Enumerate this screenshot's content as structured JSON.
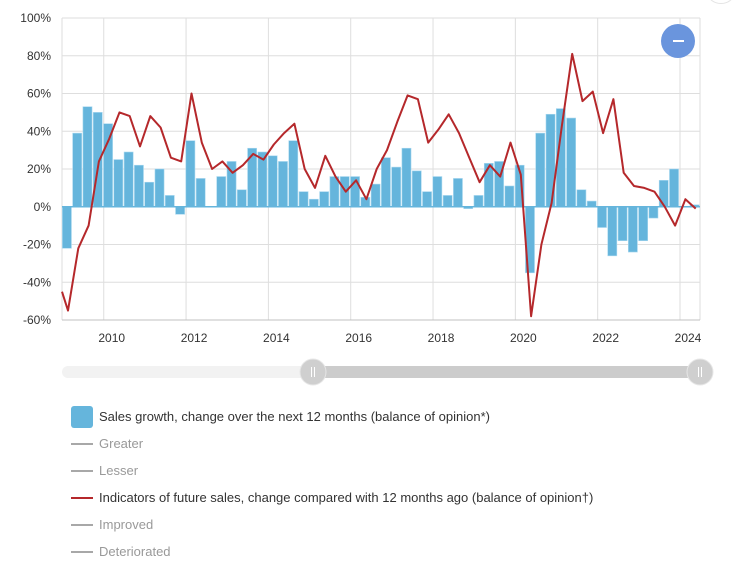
{
  "chart_data": {
    "type": "bar+line",
    "title": "",
    "xlabel": "",
    "ylabel": "",
    "ylim": [
      -60,
      100
    ],
    "yticks": [
      "100%",
      "80%",
      "60%",
      "40%",
      "20%",
      "0%",
      "-20%",
      "-40%",
      "-60%"
    ],
    "ytick_values": [
      100,
      80,
      60,
      40,
      20,
      0,
      -20,
      -40,
      -60
    ],
    "xlim": [
      2008.5,
      2024.0
    ],
    "xticks": [
      "2010",
      "2012",
      "2014",
      "2016",
      "2018",
      "2020",
      "2022",
      "2024"
    ],
    "xtick_values": [
      2010,
      2012,
      2014,
      2016,
      2018,
      2020,
      2022,
      2024
    ],
    "grid": true,
    "legend_position": "bottom",
    "x_quarterly_start": 2008.625,
    "x_step_years": 0.25,
    "series": [
      {
        "name": "Sales growth, change over the next 12 months (balance of opinion*)",
        "kind": "bar",
        "color": "#65b5dc",
        "values": [
          -22,
          39,
          53,
          50,
          44,
          25,
          29,
          22,
          13,
          20,
          6,
          -4,
          35,
          15,
          0,
          16,
          24,
          9,
          31,
          29,
          27,
          24,
          35,
          8,
          4,
          8,
          16,
          16,
          16,
          5,
          12,
          26,
          21,
          31,
          19,
          8,
          16,
          6,
          15,
          -1,
          6,
          23,
          24,
          11,
          22,
          -35,
          39,
          49,
          52,
          47,
          9,
          3,
          -11,
          -26,
          -18,
          -24,
          -18,
          -6,
          14,
          20,
          0,
          1
        ]
      },
      {
        "name": "Indicators of future sales, change compared with 12 months ago (balance of opinion†)",
        "kind": "line",
        "color": "#b5282b",
        "x_start": 2008.5,
        "values": [
          -45,
          -55,
          -22,
          -10,
          24,
          36,
          50,
          48,
          32,
          48,
          42,
          26,
          24,
          60,
          34,
          20,
          24,
          18,
          22,
          28,
          25,
          33,
          39,
          44,
          20,
          10,
          27,
          16,
          8,
          14,
          4,
          20,
          30,
          45,
          59,
          57,
          34,
          41,
          49,
          39,
          26,
          13,
          22,
          16,
          34,
          17,
          -58,
          -20,
          2,
          43,
          81,
          56,
          61,
          39,
          57,
          18,
          11,
          10,
          8,
          0,
          -10,
          4,
          -1
        ]
      }
    ],
    "legend": [
      {
        "label": "Sales growth, change over the next 12 months (balance of opinion*)",
        "kind": "swatch",
        "color": "#65b5dc",
        "active": true
      },
      {
        "label": "Greater",
        "kind": "line",
        "color": "#a8a8a8",
        "active": false
      },
      {
        "label": "Lesser",
        "kind": "line",
        "color": "#a8a8a8",
        "active": false
      },
      {
        "label": "Indicators of future sales, change compared with 12 months ago (balance of opinion†)",
        "kind": "line",
        "color": "#b5282b",
        "active": true
      },
      {
        "label": "Improved",
        "kind": "line",
        "color": "#a8a8a8",
        "active": false
      },
      {
        "label": "Deteriorated",
        "kind": "line",
        "color": "#a8a8a8",
        "active": false
      }
    ]
  },
  "controls": {
    "zoom_button_icon": "minus-icon",
    "range_slider": {
      "start_fraction": 0.4,
      "end_fraction": 1.0
    }
  },
  "colors": {
    "active_text": "#333333",
    "inactive_text": "#999999",
    "slider_track": "#f2f2f2",
    "slider_fill": "#cccccc",
    "zoom_button": "#6a95dd"
  }
}
